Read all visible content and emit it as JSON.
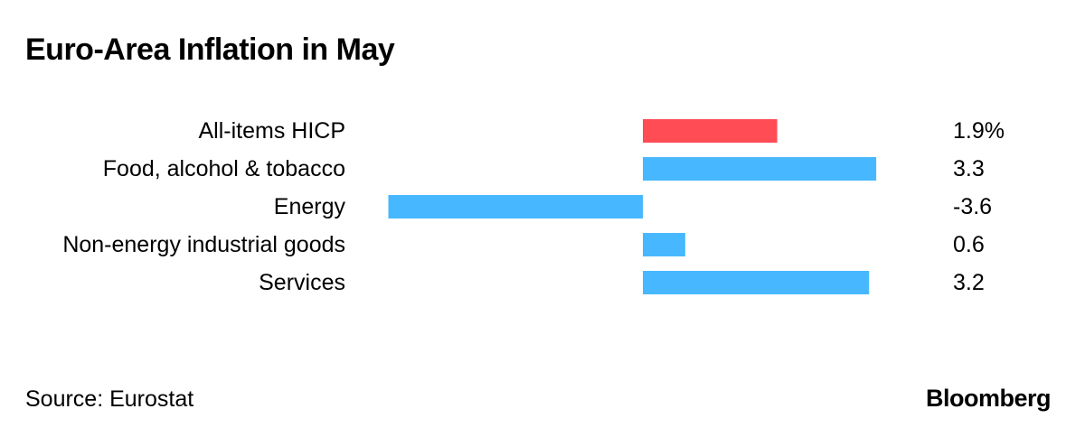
{
  "chart_data": {
    "type": "bar",
    "orientation": "horizontal",
    "title": "Euro-Area Inflation in May",
    "categories": [
      "All-items HICP",
      "Food, alcohol & tobacco",
      "Energy",
      "Non-energy industrial goods",
      "Services"
    ],
    "values": [
      1.9,
      3.3,
      -3.6,
      0.6,
      3.2
    ],
    "value_labels": [
      "1.9%",
      "3.3",
      "-3.6",
      "0.6",
      "3.2"
    ],
    "colors": [
      "#ff4c55",
      "#47b8ff",
      "#47b8ff",
      "#47b8ff",
      "#47b8ff"
    ],
    "xlim": [
      -3.6,
      3.3
    ],
    "grid": false,
    "legend": "none"
  },
  "footer": {
    "source": "Source: Eurostat",
    "brand": "Bloomberg"
  }
}
